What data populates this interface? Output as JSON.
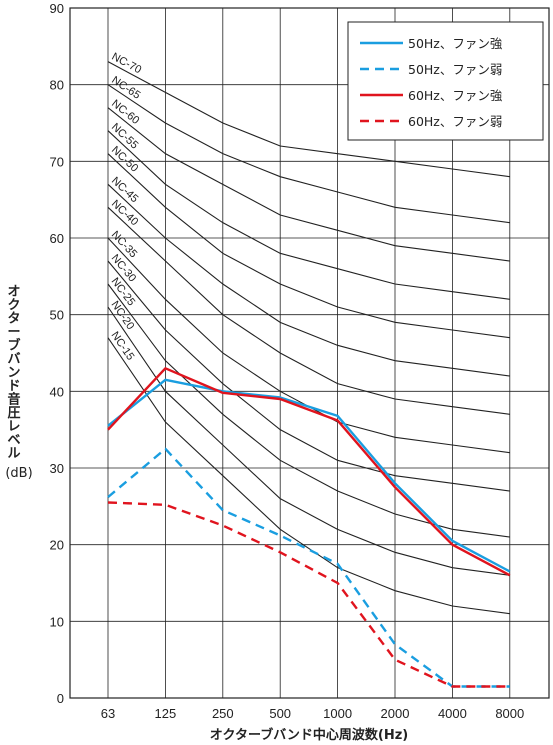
{
  "chart_data": {
    "type": "line",
    "xlabel": "オクターブバンド中心周波数(Hz)",
    "ylabel_lines": [
      "オクターブバンド音圧レベル",
      "(dB)"
    ],
    "categories": [
      "63",
      "125",
      "250",
      "500",
      "1000",
      "2000",
      "4000",
      "8000"
    ],
    "ylim": [
      0,
      90
    ],
    "yticks": [
      0,
      10,
      20,
      30,
      40,
      50,
      60,
      70,
      80,
      90
    ],
    "grid": true,
    "legend_position": "top-right",
    "nc_curves": [
      {
        "name": "NC-70",
        "values": [
          83,
          79,
          75,
          72,
          71,
          70,
          69,
          68
        ]
      },
      {
        "name": "NC-65",
        "values": [
          80,
          75,
          71,
          68,
          66,
          64,
          63,
          62
        ]
      },
      {
        "name": "NC-60",
        "values": [
          77,
          71,
          67,
          63,
          61,
          59,
          58,
          57
        ]
      },
      {
        "name": "NC-55",
        "values": [
          74,
          67,
          62,
          58,
          56,
          54,
          53,
          52
        ]
      },
      {
        "name": "NC-50",
        "values": [
          71,
          64,
          58,
          54,
          51,
          49,
          48,
          47
        ]
      },
      {
        "name": "NC-45",
        "values": [
          67,
          60,
          54,
          49,
          46,
          44,
          43,
          42
        ]
      },
      {
        "name": "NC-40",
        "values": [
          64,
          57,
          50,
          45,
          41,
          39,
          38,
          37
        ]
      },
      {
        "name": "NC-35",
        "values": [
          60,
          52,
          45,
          40,
          36,
          34,
          33,
          32
        ]
      },
      {
        "name": "NC-30",
        "values": [
          57,
          48,
          41,
          35,
          31,
          29,
          28,
          27
        ]
      },
      {
        "name": "NC-25",
        "values": [
          54,
          44,
          37,
          31,
          27,
          24,
          22,
          21
        ]
      },
      {
        "name": "NC-20",
        "values": [
          51,
          40,
          33,
          26,
          22,
          19,
          17,
          16
        ]
      },
      {
        "name": "NC-15",
        "values": [
          47,
          36,
          29,
          22,
          17,
          14,
          12,
          11
        ]
      }
    ],
    "series": [
      {
        "name": "50Hz、ファン強",
        "color": "#1a9ee0",
        "dash": "solid",
        "values": [
          35.5,
          41.5,
          40,
          39.2,
          36.8,
          28,
          20.5,
          16.5
        ]
      },
      {
        "name": "50Hz、ファン弱",
        "color": "#1a9ee0",
        "dash": "dashed",
        "values": [
          26.2,
          32.5,
          24.5,
          21.2,
          17.5,
          7,
          1.5,
          1.5
        ]
      },
      {
        "name": "60Hz、ファン強",
        "color": "#e0141e",
        "dash": "solid",
        "values": [
          35,
          43,
          39.8,
          39,
          36.2,
          27.5,
          20,
          16
        ]
      },
      {
        "name": "60Hz、ファン弱",
        "color": "#e0141e",
        "dash": "dashed",
        "values": [
          25.5,
          25.2,
          22.5,
          19,
          15,
          5,
          1.5,
          1.5
        ]
      }
    ]
  }
}
